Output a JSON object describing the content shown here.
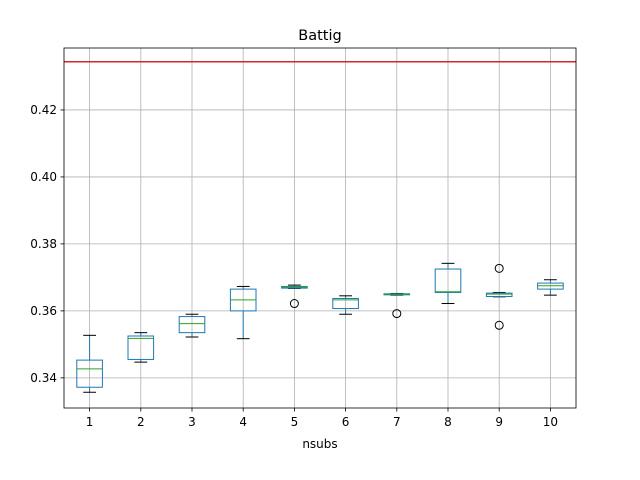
{
  "chart_data": {
    "type": "box",
    "title": "Battig",
    "xlabel": "nsubs",
    "ylabel": "",
    "categories": [
      "1",
      "2",
      "3",
      "4",
      "5",
      "6",
      "7",
      "8",
      "9",
      "10"
    ],
    "ylim": [
      0.331,
      0.4385
    ],
    "yticks": [
      0.34,
      0.36,
      0.38,
      0.4,
      0.42
    ],
    "ytick_labels": [
      "0.34",
      "0.36",
      "0.38",
      "0.40",
      "0.42"
    ],
    "grid": true,
    "reference_line": {
      "value": 0.4344,
      "color": "#d62728"
    },
    "box_color": "#1f77b4",
    "median_color": "#2ca02c",
    "boxes": [
      {
        "category": "1",
        "whislo": 0.3357,
        "q1": 0.3372,
        "med": 0.3427,
        "q3": 0.3453,
        "whishi": 0.3527,
        "fliers": []
      },
      {
        "category": "2",
        "whislo": 0.3447,
        "q1": 0.3455,
        "med": 0.3518,
        "q3": 0.3525,
        "whishi": 0.3535,
        "fliers": []
      },
      {
        "category": "3",
        "whislo": 0.3522,
        "q1": 0.3535,
        "med": 0.3562,
        "q3": 0.3583,
        "whishi": 0.359,
        "fliers": []
      },
      {
        "category": "4",
        "whislo": 0.3517,
        "q1": 0.36,
        "med": 0.3633,
        "q3": 0.3665,
        "whishi": 0.3673,
        "fliers": []
      },
      {
        "category": "5",
        "whislo": 0.3667,
        "q1": 0.3668,
        "med": 0.367,
        "q3": 0.3673,
        "whishi": 0.3677,
        "fliers": [
          0.3622
        ]
      },
      {
        "category": "6",
        "whislo": 0.359,
        "q1": 0.3607,
        "med": 0.3633,
        "q3": 0.3637,
        "whishi": 0.3645,
        "fliers": []
      },
      {
        "category": "7",
        "whislo": 0.3647,
        "q1": 0.3648,
        "med": 0.365,
        "q3": 0.3651,
        "whishi": 0.3652,
        "fliers": [
          0.3592
        ]
      },
      {
        "category": "8",
        "whislo": 0.3622,
        "q1": 0.3655,
        "med": 0.3657,
        "q3": 0.3725,
        "whishi": 0.3742,
        "fliers": []
      },
      {
        "category": "9",
        "whislo": 0.3642,
        "q1": 0.3643,
        "med": 0.365,
        "q3": 0.3653,
        "whishi": 0.3655,
        "fliers": [
          0.3727,
          0.3557
        ]
      },
      {
        "category": "10",
        "whislo": 0.3647,
        "q1": 0.3665,
        "med": 0.3675,
        "q3": 0.3683,
        "whishi": 0.3693,
        "fliers": []
      }
    ]
  }
}
